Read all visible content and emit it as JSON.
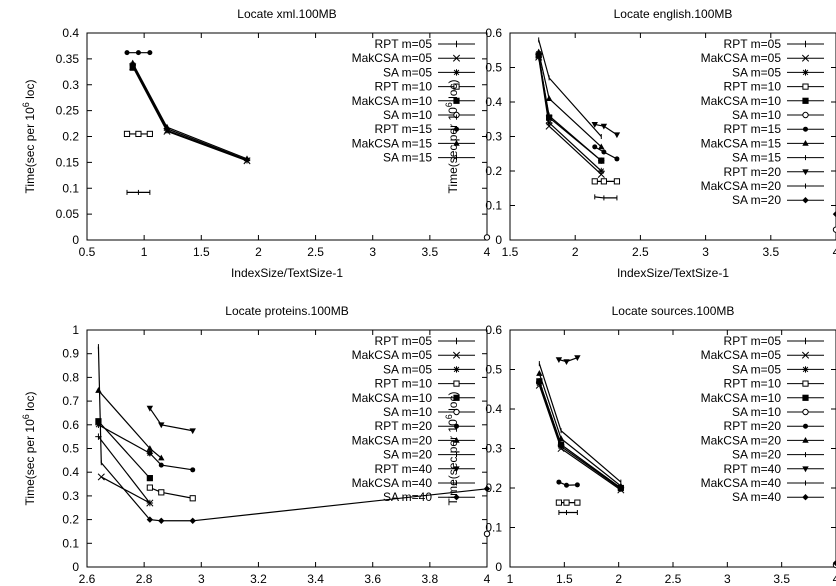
{
  "chart_data": [
    {
      "type": "line",
      "title": "Locate xml.100MB",
      "xlabel": "IndexSize/TextSize-1",
      "ylabel": "Time(sec per 10^6 loc)",
      "xlim": [
        0.5,
        4
      ],
      "ylim": [
        0,
        0.4
      ],
      "xticks": [
        "0.5",
        "1",
        "1.5",
        "2",
        "2.5",
        "3",
        "3.5",
        "4"
      ],
      "yticks": [
        "0",
        "0.05",
        "0.1",
        "0.15",
        "0.2",
        "0.25",
        "0.3",
        "0.35",
        "0.4"
      ],
      "legend_position": "top-right",
      "series": [
        {
          "name": "RPT m=05",
          "marker": "plus",
          "x": [
            0.9,
            1.2,
            1.9
          ],
          "y": [
            0.34,
            0.215,
            0.155
          ]
        },
        {
          "name": "MakCSA m=05",
          "marker": "x",
          "x": [
            0.9,
            1.2,
            1.9
          ],
          "y": [
            0.335,
            0.21,
            0.153
          ]
        },
        {
          "name": "SA m=05",
          "marker": "star",
          "x": [
            0.9,
            1.2,
            1.9
          ],
          "y": [
            0.338,
            0.212,
            0.154
          ]
        },
        {
          "name": "RPT m=10",
          "marker": "square-open",
          "x": [
            0.85,
            0.95,
            1.05
          ],
          "y": [
            0.205,
            0.205,
            0.205
          ]
        },
        {
          "name": "MakCSA m=10",
          "marker": "square-filled",
          "x": [
            0.9
          ],
          "y": [
            0.333
          ]
        },
        {
          "name": "SA m=10",
          "marker": "circle-open",
          "x": [
            4.0
          ],
          "y": [
            0.005
          ]
        },
        {
          "name": "RPT m=15",
          "marker": "circle-filled",
          "x": [
            0.85,
            0.95,
            1.05
          ],
          "y": [
            0.362,
            0.362,
            0.362
          ]
        },
        {
          "name": "MakCSA m=15",
          "marker": "triangle-up",
          "x": [
            0.9,
            1.2,
            1.9
          ],
          "y": [
            0.342,
            0.218,
            0.157
          ]
        },
        {
          "name": "SA m=15",
          "marker": "tick",
          "x": [
            0.85,
            0.95,
            1.05
          ],
          "y": [
            0.092,
            0.092,
            0.092
          ]
        }
      ]
    },
    {
      "type": "line",
      "title": "Locate english.100MB",
      "xlabel": "IndexSize/TextSize-1",
      "ylabel": "Time(sec per 10^6 loc)",
      "xlim": [
        1.5,
        4
      ],
      "ylim": [
        0,
        0.6
      ],
      "xticks": [
        "1.5",
        "2",
        "2.5",
        "3",
        "3.5",
        "4"
      ],
      "yticks": [
        "0",
        "0.1",
        "0.2",
        "0.3",
        "0.4",
        "0.5",
        "0.6"
      ],
      "legend_position": "top-right",
      "series": [
        {
          "name": "RPT m=05",
          "marker": "plus",
          "x": [
            1.72,
            1.8,
            2.2
          ],
          "y": [
            0.53,
            0.36,
            0.23
          ]
        },
        {
          "name": "MakCSA m=05",
          "marker": "x",
          "x": [
            1.72,
            1.8,
            2.2
          ],
          "y": [
            0.53,
            0.33,
            0.19
          ]
        },
        {
          "name": "SA m=05",
          "marker": "star",
          "x": [
            1.72,
            1.8,
            2.2
          ],
          "y": [
            0.54,
            0.34,
            0.2
          ]
        },
        {
          "name": "RPT m=10",
          "marker": "square-open",
          "x": [
            2.15,
            2.22,
            2.32
          ],
          "y": [
            0.17,
            0.17,
            0.17
          ]
        },
        {
          "name": "MakCSA m=10",
          "marker": "square-filled",
          "x": [
            1.72,
            1.8,
            2.2
          ],
          "y": [
            0.535,
            0.355,
            0.23
          ]
        },
        {
          "name": "SA m=10",
          "marker": "circle-open",
          "x": [
            4.0
          ],
          "y": [
            0.03
          ]
        },
        {
          "name": "RPT m=15",
          "marker": "circle-filled",
          "x": [
            2.15,
            2.22,
            2.32
          ],
          "y": [
            0.27,
            0.255,
            0.235
          ]
        },
        {
          "name": "MakCSA m=15",
          "marker": "triangle-up",
          "x": [
            1.72,
            1.8,
            2.2
          ],
          "y": [
            0.545,
            0.41,
            0.27
          ]
        },
        {
          "name": "SA m=15",
          "marker": "tick",
          "x": [
            1.72,
            1.8,
            2.2
          ],
          "y": [
            0.58,
            0.47,
            0.3
          ]
        },
        {
          "name": "RPT m=20",
          "marker": "triangle-down",
          "x": [
            2.15,
            2.22,
            2.32
          ],
          "y": [
            0.335,
            0.33,
            0.305
          ]
        },
        {
          "name": "MakCSA m=20",
          "marker": "tick",
          "x": [
            2.15,
            2.22,
            2.32
          ],
          "y": [
            0.125,
            0.122,
            0.122
          ]
        },
        {
          "name": "SA m=20",
          "marker": "diamond",
          "x": [
            4.0
          ],
          "y": [
            0.075
          ]
        }
      ]
    },
    {
      "type": "line",
      "title": "Locate proteins.100MB",
      "xlabel": "IndexSize/TextSize-1",
      "ylabel": "Time(sec per 10^6 loc)",
      "xlim": [
        2.6,
        4
      ],
      "ylim": [
        0,
        1
      ],
      "xticks": [
        "2.6",
        "2.8",
        "3",
        "3.2",
        "3.4",
        "3.6",
        "3.8",
        "4"
      ],
      "yticks": [
        "0",
        "0.1",
        "0.2",
        "0.3",
        "0.4",
        "0.5",
        "0.6",
        "0.7",
        "0.8",
        "0.9",
        "1"
      ],
      "legend_position": "top-right",
      "series": [
        {
          "name": "RPT m=05",
          "marker": "plus",
          "x": [
            2.64,
            2.82
          ],
          "y": [
            0.55,
            0.27
          ]
        },
        {
          "name": "MakCSA m=05",
          "marker": "x",
          "x": [
            2.65,
            2.82
          ],
          "y": [
            0.38,
            0.27
          ]
        },
        {
          "name": "SA m=05",
          "marker": "star",
          "x": [
            2.64,
            2.82
          ],
          "y": [
            0.6,
            0.48
          ]
        },
        {
          "name": "RPT m=10",
          "marker": "square-open",
          "x": [
            2.82,
            2.86,
            2.97
          ],
          "y": [
            0.335,
            0.315,
            0.29
          ]
        },
        {
          "name": "MakCSA m=10",
          "marker": "square-filled",
          "x": [
            2.64,
            2.82
          ],
          "y": [
            0.615,
            0.375
          ]
        },
        {
          "name": "SA m=10",
          "marker": "circle-open",
          "x": [
            4.0
          ],
          "y": [
            0.14
          ]
        },
        {
          "name": "RPT m=20",
          "marker": "circle-filled",
          "x": [
            2.82,
            2.86,
            2.97
          ],
          "y": [
            0.48,
            0.43,
            0.41
          ]
        },
        {
          "name": "MakCSA m=20",
          "marker": "triangle-up",
          "x": [
            2.64,
            2.82,
            2.86
          ],
          "y": [
            0.745,
            0.5,
            0.46
          ]
        },
        {
          "name": "SA m=20",
          "marker": "tick",
          "x": [
            4.0
          ],
          "y": [
            0.22
          ]
        },
        {
          "name": "RPT m=40",
          "marker": "triangle-down",
          "x": [
            2.82,
            2.86,
            2.97
          ],
          "y": [
            0.67,
            0.6,
            0.575
          ]
        },
        {
          "name": "MakCSA m=40",
          "marker": "tick",
          "x": [
            2.64,
            2.65,
            2.82
          ],
          "y": [
            0.93,
            0.44,
            0.2
          ]
        },
        {
          "name": "SA m=40",
          "marker": "diamond",
          "x": [
            2.82,
            2.86,
            2.97,
            4.0
          ],
          "y": [
            0.2,
            0.195,
            0.195,
            0.33
          ]
        }
      ]
    },
    {
      "type": "line",
      "title": "Locate sources.100MB",
      "xlabel": "IndexSize/TextSize-1",
      "ylabel": "Time(sec per 10^6 loc)",
      "xlim": [
        1,
        4
      ],
      "ylim": [
        0,
        0.6
      ],
      "xticks": [
        "1",
        "1.5",
        "2",
        "2.5",
        "3",
        "3.5",
        "4"
      ],
      "yticks": [
        "0",
        "0.1",
        "0.2",
        "0.3",
        "0.4",
        "0.5",
        "0.6"
      ],
      "legend_position": "top-right",
      "series": [
        {
          "name": "RPT m=05",
          "marker": "plus",
          "x": [
            1.27,
            1.47,
            2.02
          ],
          "y": [
            0.47,
            0.31,
            0.2
          ]
        },
        {
          "name": "MakCSA m=05",
          "marker": "x",
          "x": [
            1.27,
            1.47,
            2.02
          ],
          "y": [
            0.46,
            0.3,
            0.195
          ]
        },
        {
          "name": "SA m=05",
          "marker": "star",
          "x": [
            1.27,
            1.47,
            2.02
          ],
          "y": [
            0.465,
            0.305,
            0.198
          ]
        },
        {
          "name": "RPT m=10",
          "marker": "square-open",
          "x": [
            1.45,
            1.52,
            1.62
          ],
          "y": [
            0.163,
            0.163,
            0.163
          ]
        },
        {
          "name": "MakCSA m=10",
          "marker": "square-filled",
          "x": [
            1.27,
            1.47,
            2.02
          ],
          "y": [
            0.47,
            0.31,
            0.2
          ]
        },
        {
          "name": "SA m=10",
          "marker": "circle-open",
          "x": [
            4.0
          ],
          "y": [
            0.005
          ]
        },
        {
          "name": "RPT m=20",
          "marker": "circle-filled",
          "x": [
            1.45,
            1.52,
            1.62
          ],
          "y": [
            0.215,
            0.207,
            0.208
          ]
        },
        {
          "name": "MakCSA m=20",
          "marker": "triangle-up",
          "x": [
            1.27,
            1.47,
            2.02
          ],
          "y": [
            0.49,
            0.325,
            0.205
          ]
        },
        {
          "name": "SA m=20",
          "marker": "tick",
          "x": [
            1.27,
            1.47,
            2.02
          ],
          "y": [
            0.515,
            0.345,
            0.215
          ]
        },
        {
          "name": "RPT m=40",
          "marker": "triangle-down",
          "x": [
            1.45,
            1.52,
            1.62
          ],
          "y": [
            0.525,
            0.52,
            0.53
          ]
        },
        {
          "name": "MakCSA m=40",
          "marker": "tick",
          "x": [
            1.45,
            1.52,
            1.62
          ],
          "y": [
            0.138,
            0.138,
            0.138
          ]
        },
        {
          "name": "SA m=40",
          "marker": "diamond",
          "x": [
            4.0
          ],
          "y": [
            0.01
          ]
        }
      ]
    }
  ]
}
